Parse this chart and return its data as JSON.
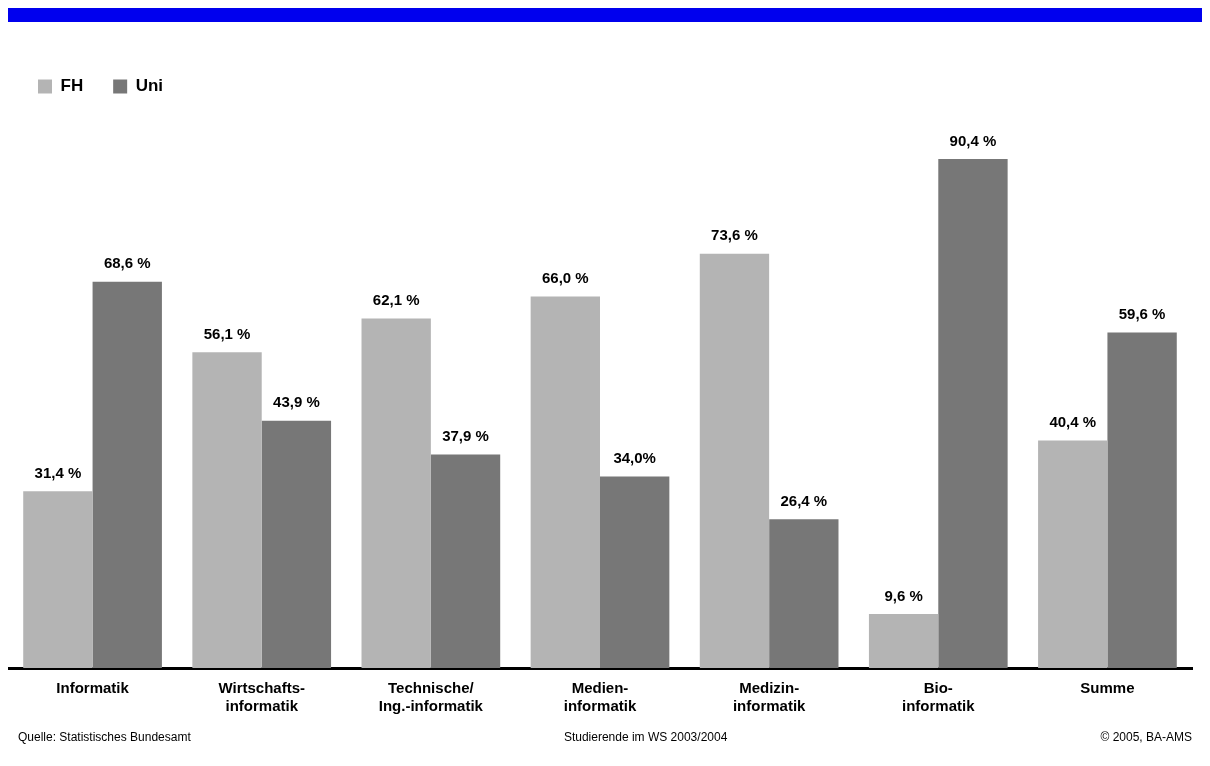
{
  "chart_data": {
    "type": "bar",
    "categories": [
      "Informatik",
      "Wirtschafts-\ninformatik",
      "Technische/\nIng.-informatik",
      "Medien-\ninformatik",
      "Medizin-\ninformatik",
      "Bio-\ninformatik",
      "Summe"
    ],
    "series": [
      {
        "name": "FH",
        "color": "#b4b4b4",
        "values": [
          31.4,
          56.1,
          62.1,
          66.0,
          73.6,
          9.6,
          40.4
        ],
        "value_labels": [
          "31,4 %",
          "56,1 %",
          "62,1 %",
          "66,0 %",
          "73,6 %",
          "9,6 %",
          "40,4 %"
        ]
      },
      {
        "name": "Uni",
        "color": "#777777",
        "values": [
          68.6,
          43.9,
          37.9,
          34.0,
          26.4,
          90.4,
          59.6
        ],
        "value_labels": [
          "68,6 %",
          "43,9 %",
          "37,9 %",
          "34,0%",
          "26,4 %",
          "90,4 %",
          "59,6 %"
        ]
      }
    ],
    "legend": "top left",
    "grid": false,
    "annotations": [
      "Quelle: Statistisches Bundesamt",
      "Studierende im WS 2003/2004",
      "© 2005, BA-AMS"
    ]
  }
}
